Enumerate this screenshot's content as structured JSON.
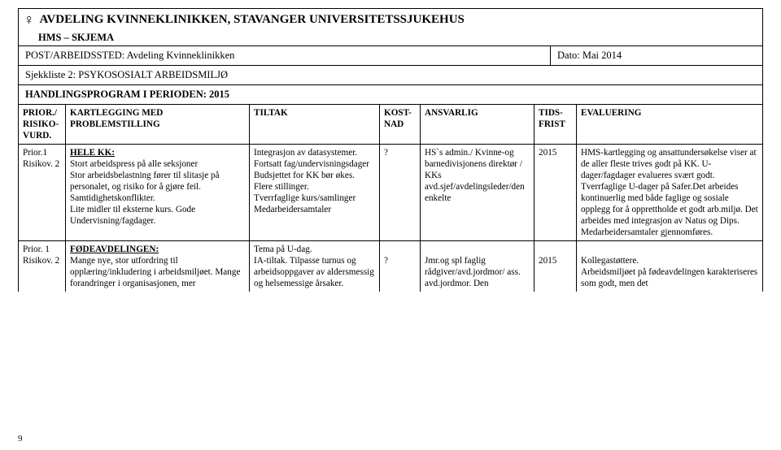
{
  "header": {
    "title": "AVDELING KVINNEKLINIKKEN, STAVANGER UNIVERSITETSSJUKEHUS",
    "subtitle": "HMS – SKJEMA",
    "post_label": "POST/ARBEIDSSTED: Avdeling Kvinneklinikken",
    "date_label": "Dato: Mai 2014",
    "sjekkliste": "Sjekkliste 2: PSYKOSOSIALT ARBEIDSMILJØ",
    "program": "HANDLINGSPROGRAM I PERIODEN: 2015"
  },
  "table": {
    "headers": {
      "prior": "PRIOR./\nRISIKO-\nVURD.",
      "problem": "KARTLEGGING MED PROBLEMSTILLING",
      "tiltak": "TILTAK",
      "kost": "KOST-\nNAD",
      "ansvarlig": "ANSVARLIG",
      "tids": "TIDS-\nFRIST",
      "eval": "EVALUERING"
    },
    "rows": [
      {
        "prior": "Prior.1\nRisikov. 2",
        "problem_heading": "HELE KK:",
        "problem_body": "Stort arbeidspress på alle seksjoner\nStor arbeidsbelastning fører til slitasje på personalet, og risiko for å gjøre feil. Samtidighetskonflikter.\nLite midler til eksterne kurs. Gode Undervisning/fagdager.",
        "tiltak": "Integrasjon av datasystemer.\nFortsatt fag/undervisningsdager\nBudsjettet for KK bør økes. Flere stillinger.\nTverrfaglige kurs/samlinger\nMedarbeidersamtaler",
        "kost": "?",
        "ansvarlig": "HS`s admin./ Kvinne-og barnedivisjonens direktør / KKs avd.sjef/avdelingsleder/den enkelte",
        "tids": "2015",
        "eval": "HMS-kartlegging og ansattundersøkelse viser at de aller fleste trives godt på KK. U-dager/fagdager evalueres svært godt. Tverrfaglige U-dager på Safer.Det arbeides kontinuerlig med både faglige og sosiale opplegg for å opprettholde et godt arb.miljø. Det arbeides med integrasjon av Natus og Dips. Medarbeidersamtaler gjennomføres."
      },
      {
        "prior": "Prior. 1\nRisikov. 2",
        "problem_heading": "FØDEAVDELINGEN:",
        "problem_body": "Mange nye, stor utfordring til opplæring/inkludering i arbeidsmiljøet. Mange forandringer i organisasjonen, mer",
        "tiltak": "Tema på U-dag.\nIA-tiltak. Tilpasse turnus og arbeidsoppgaver av aldersmessig og helsemessige årsaker.",
        "kost": "?",
        "ansvarlig": "Jmr.og spl faglig rådgiver/avd.jordmor/ ass. avd.jordmor. Den",
        "tids": "2015",
        "eval": "Kollegastøttere.\nArbeidsmiljøet på fødeavdelingen karakteriseres som godt, men det"
      }
    ]
  },
  "page_number": "9"
}
